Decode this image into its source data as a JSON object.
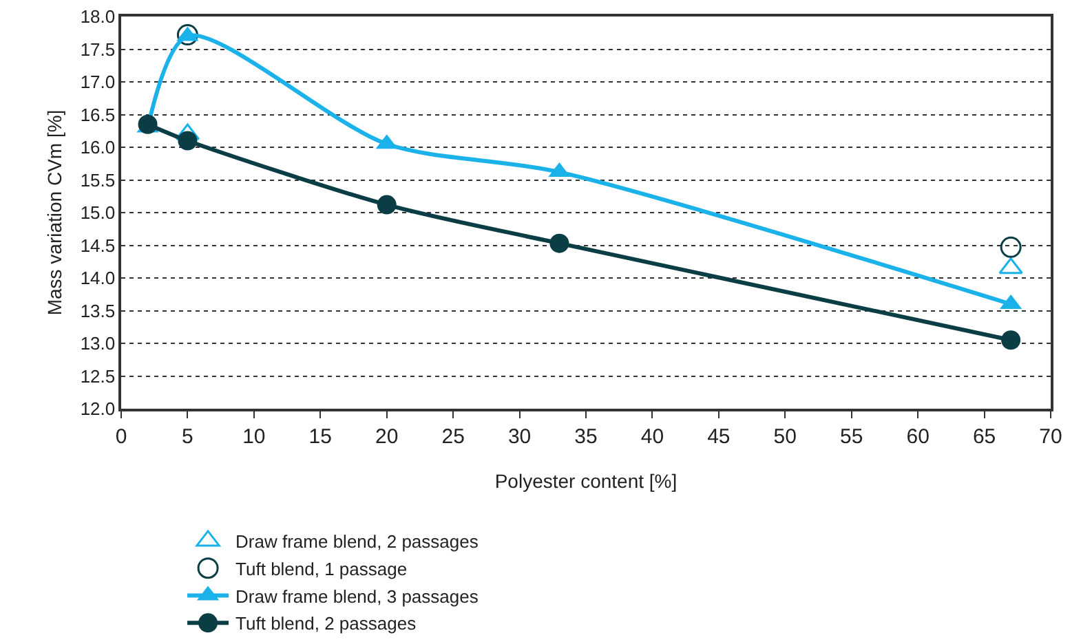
{
  "chart_data": {
    "type": "scatter",
    "xlabel": "Polyester content [%]",
    "ylabel": "Mass variation CVm [%]",
    "xlim": [
      0,
      70
    ],
    "xticks": [
      0,
      5,
      10,
      15,
      20,
      25,
      30,
      35,
      40,
      45,
      50,
      55,
      60,
      65,
      70
    ],
    "ylim": [
      12,
      18
    ],
    "yticks": [
      {
        "value": 12,
        "label": "12.0"
      },
      {
        "value": 12.5,
        "label": "12.5"
      },
      {
        "value": 13,
        "label": "13.0"
      },
      {
        "value": 13.5,
        "label": "13.5"
      },
      {
        "value": 14,
        "label": "14.0"
      },
      {
        "value": 14.5,
        "label": "14.5"
      },
      {
        "value": 15,
        "label": "15.0"
      },
      {
        "value": 15.5,
        "label": "15.5"
      },
      {
        "value": 16,
        "label": "16.0"
      },
      {
        "value": 16.5,
        "label": "16.5"
      },
      {
        "value": 17,
        "label": "17.0"
      },
      {
        "value": 17.5,
        "label": "17.5"
      },
      {
        "value": 18,
        "label": "18.0"
      }
    ],
    "grid": "y",
    "legend": "bottom",
    "series": [
      {
        "name": "Draw frame blend, 2 passages",
        "type": "scatter",
        "marker": "triangle",
        "color": "#1ab2e8",
        "x": [
          5,
          67
        ],
        "values": [
          16.2,
          14.15
        ]
      },
      {
        "name": "Tuft blend, 1 passage",
        "type": "scatter",
        "marker": "circle",
        "color": "#0b3d45",
        "x": [
          5,
          67
        ],
        "values": [
          17.72,
          14.47
        ]
      },
      {
        "name": "Draw frame blend, 3 passages",
        "type": "line",
        "marker": "triangle",
        "color": "#1ab2e8",
        "x": [
          2,
          5,
          20,
          33,
          67
        ],
        "values": [
          16.3,
          17.7,
          16.05,
          15.62,
          13.6
        ]
      },
      {
        "name": "Tuft blend, 2 passages",
        "type": "line",
        "marker": "circle",
        "color": "#0b3d45",
        "x": [
          2,
          5,
          20,
          33,
          67
        ],
        "values": [
          16.35,
          16.1,
          15.12,
          14.53,
          13.05
        ]
      }
    ]
  }
}
